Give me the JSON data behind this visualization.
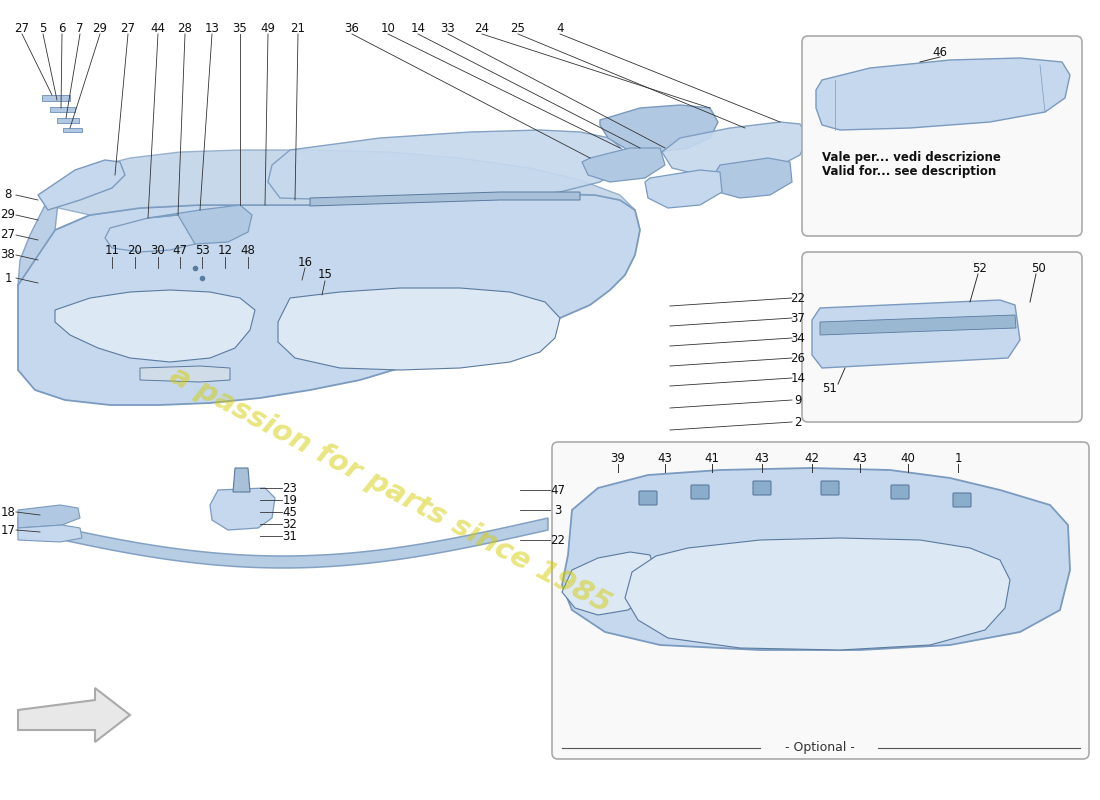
{
  "bg": "#ffffff",
  "fill_light": "#c5d8ed",
  "fill_mid": "#b0c8e2",
  "fill_dark": "#9ab8d8",
  "edge": "#7a9abf",
  "edge_dark": "#5a7a9f",
  "line_col": "#333333",
  "box_edge": "#aaaaaa",
  "box_fill": "#f9f9f9",
  "wm_col": "#d4cc00",
  "wm_alpha": 0.5,
  "lfs": 8.5,
  "inset1_text1": "Vale per... vedi descrizione",
  "inset1_text2": "Valid for... see description",
  "optional_text": "- Optional -"
}
